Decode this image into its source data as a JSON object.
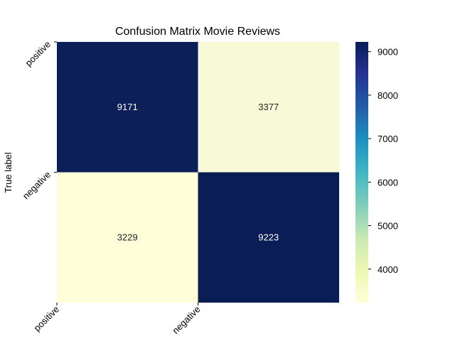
{
  "chart_data": {
    "type": "heatmap",
    "title": "Confusion Matrix Movie Reviews",
    "ylabel": "True label",
    "xlabel": "",
    "row_labels": [
      "positive",
      "negative"
    ],
    "col_labels": [
      "positive",
      "negative"
    ],
    "values": [
      [
        9171,
        3377
      ],
      [
        3229,
        9223
      ]
    ],
    "colorbar": {
      "ticks": [
        4000,
        5000,
        6000,
        7000,
        8000,
        9000
      ],
      "range": [
        3229,
        9223
      ],
      "colormap": "YlGnBu"
    },
    "colors": {
      "low": "#feffd9",
      "high": "#0a1d55",
      "text_on_dark": "#ffffff",
      "text_on_light": "#262626"
    }
  }
}
